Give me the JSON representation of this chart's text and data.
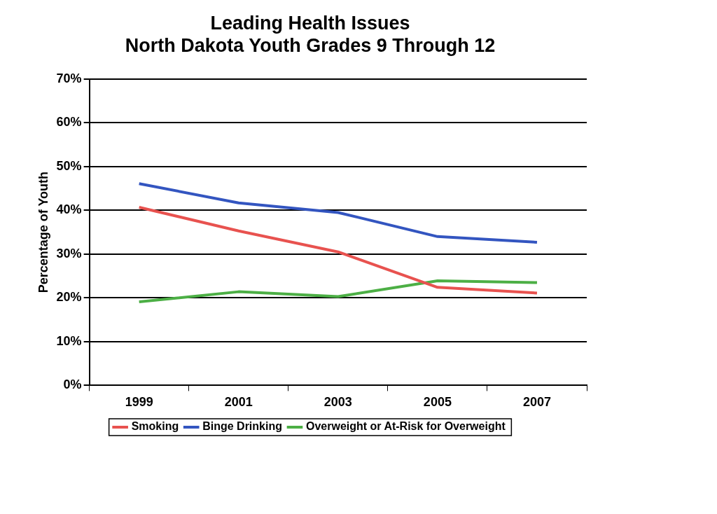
{
  "chart_data": {
    "type": "line",
    "title": "Leading Health Issues\nNorth Dakota Youth Grades 9 Through 12",
    "ylabel": "Percentage of Youth",
    "categories": [
      "1999",
      "2001",
      "2003",
      "2005",
      "2007"
    ],
    "series": [
      {
        "name": "Smoking",
        "color": "#e8524f",
        "values": [
          40.7,
          35.3,
          30.5,
          22.4,
          21.1
        ]
      },
      {
        "name": "Binge Drinking",
        "color": "#3355c0",
        "values": [
          46.1,
          41.7,
          39.5,
          34.0,
          32.7
        ]
      },
      {
        "name": "Overweight or At-Risk for Overweight",
        "color": "#4caf45",
        "values": [
          19.1,
          21.4,
          20.3,
          23.9,
          23.5
        ]
      }
    ],
    "ylim": [
      0,
      70
    ],
    "yticks": [
      {
        "value": 0,
        "label": "0%"
      },
      {
        "value": 10,
        "label": "10%"
      },
      {
        "value": 20,
        "label": "20%"
      },
      {
        "value": 30,
        "label": "30%"
      },
      {
        "value": 40,
        "label": "40%"
      },
      {
        "value": 50,
        "label": "50%"
      },
      {
        "value": 60,
        "label": "60%"
      },
      {
        "value": 70,
        "label": "70%"
      }
    ],
    "grid": "y",
    "legend": "bottom",
    "marker": "none",
    "line_style": "solid"
  }
}
